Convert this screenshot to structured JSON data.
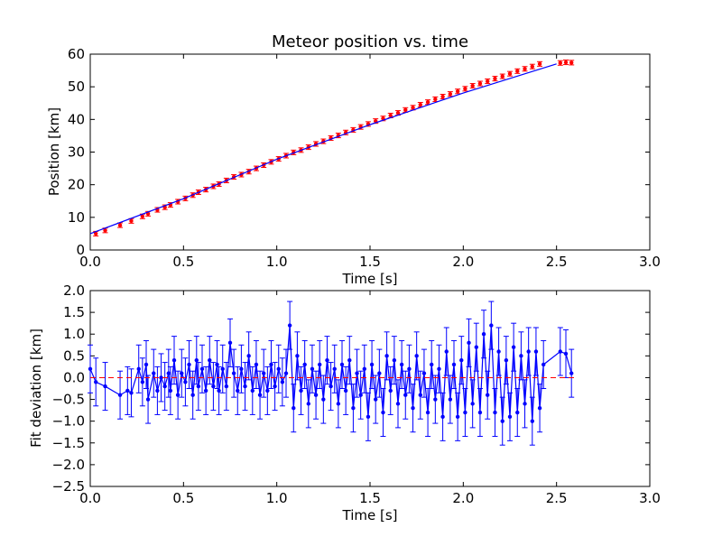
{
  "colors": {
    "fit_line": "#0000ff",
    "measured_points": "#ff0000",
    "deviation_series": "#0000ff",
    "zero_reference": "#ff0000"
  },
  "chart_data": [
    {
      "type": "scatter",
      "title": "Meteor position vs. time",
      "xlabel": "Time [s]",
      "ylabel": "Position [km]",
      "xlim": [
        0.0,
        3.0
      ],
      "ylim": [
        0,
        60
      ],
      "xticks": [
        "0.0",
        "0.5",
        "1.0",
        "1.5",
        "2.0",
        "2.5",
        "3.0"
      ],
      "yticks": [
        "0",
        "10",
        "20",
        "30",
        "40",
        "50",
        "60"
      ],
      "grid": false,
      "series": [
        {
          "kind": "points-with-error-bars",
          "marker": "red dots",
          "x": [
            0.03,
            0.08,
            0.16,
            0.22,
            0.28,
            0.31,
            0.36,
            0.4,
            0.43,
            0.47,
            0.51,
            0.55,
            0.58,
            0.62,
            0.66,
            0.69,
            0.73,
            0.77,
            0.81,
            0.85,
            0.89,
            0.93,
            0.97,
            1.01,
            1.05,
            1.09,
            1.13,
            1.17,
            1.21,
            1.25,
            1.29,
            1.33,
            1.37,
            1.41,
            1.45,
            1.49,
            1.53,
            1.57,
            1.61,
            1.65,
            1.69,
            1.73,
            1.77,
            1.81,
            1.85,
            1.89,
            1.93,
            1.97,
            2.01,
            2.05,
            2.09,
            2.13,
            2.17,
            2.21,
            2.25,
            2.29,
            2.33,
            2.37,
            2.41,
            2.52,
            2.55,
            2.58
          ],
          "y": [
            5.0,
            6.0,
            7.6,
            8.9,
            10.3,
            11.1,
            12.3,
            13.1,
            13.8,
            14.8,
            15.8,
            16.8,
            17.7,
            18.5,
            19.5,
            20.2,
            21.3,
            22.4,
            23.1,
            24.0,
            25.0,
            26.0,
            27.0,
            27.9,
            28.9,
            29.9,
            30.6,
            31.5,
            32.5,
            33.3,
            34.3,
            35.1,
            36.0,
            36.8,
            37.7,
            38.6,
            39.5,
            40.3,
            41.2,
            42.0,
            42.9,
            43.6,
            44.5,
            45.3,
            46.2,
            47.0,
            47.8,
            48.6,
            49.4,
            50.3,
            51.0,
            51.7,
            52.5,
            53.2,
            54.0,
            54.8,
            55.5,
            56.2,
            57.0,
            57.3,
            57.5,
            57.4
          ],
          "error": 0.7
        },
        {
          "kind": "fit-line",
          "x": [
            0.0,
            0.5,
            1.0,
            1.5,
            2.0,
            2.5
          ],
          "y": [
            5.0,
            15.7,
            27.8,
            38.4,
            48.1,
            57.0
          ]
        }
      ]
    },
    {
      "type": "line",
      "xlabel": "Time [s]",
      "ylabel": "Fit deviation [km]",
      "xlim": [
        0.0,
        3.0
      ],
      "ylim": [
        -2.5,
        2.0
      ],
      "xticks": [
        "0.0",
        "0.5",
        "1.0",
        "1.5",
        "2.0",
        "2.5",
        "3.0"
      ],
      "yticks": [
        "−2.5",
        "−2.0",
        "−1.5",
        "−1.0",
        "−0.5",
        "0.0",
        "0.5",
        "1.0",
        "1.5",
        "2.0"
      ],
      "grid": false,
      "series": [
        {
          "kind": "line-with-error-bars",
          "x": [
            0.0,
            0.03,
            0.08,
            0.16,
            0.2,
            0.22,
            0.26,
            0.28,
            0.3,
            0.31,
            0.34,
            0.36,
            0.38,
            0.4,
            0.42,
            0.43,
            0.45,
            0.47,
            0.49,
            0.51,
            0.53,
            0.55,
            0.57,
            0.58,
            0.6,
            0.62,
            0.64,
            0.66,
            0.68,
            0.69,
            0.71,
            0.73,
            0.75,
            0.77,
            0.79,
            0.81,
            0.83,
            0.85,
            0.87,
            0.89,
            0.91,
            0.93,
            0.95,
            0.97,
            0.99,
            1.01,
            1.03,
            1.05,
            1.07,
            1.09,
            1.11,
            1.13,
            1.15,
            1.17,
            1.19,
            1.21,
            1.23,
            1.25,
            1.27,
            1.29,
            1.31,
            1.33,
            1.35,
            1.37,
            1.39,
            1.41,
            1.43,
            1.45,
            1.47,
            1.49,
            1.51,
            1.53,
            1.55,
            1.57,
            1.59,
            1.61,
            1.63,
            1.65,
            1.67,
            1.69,
            1.71,
            1.73,
            1.75,
            1.77,
            1.79,
            1.81,
            1.83,
            1.85,
            1.87,
            1.89,
            1.91,
            1.93,
            1.95,
            1.97,
            1.99,
            2.01,
            2.03,
            2.05,
            2.07,
            2.09,
            2.11,
            2.13,
            2.15,
            2.17,
            2.19,
            2.21,
            2.23,
            2.25,
            2.27,
            2.29,
            2.31,
            2.33,
            2.35,
            2.37,
            2.39,
            2.41,
            2.43,
            2.52,
            2.55,
            2.58
          ],
          "y": [
            0.2,
            -0.1,
            -0.2,
            -0.4,
            -0.3,
            -0.35,
            0.2,
            -0.1,
            0.3,
            -0.5,
            0.1,
            -0.3,
            0.0,
            -0.2,
            0.1,
            -0.3,
            0.4,
            -0.4,
            0.1,
            -0.1,
            0.3,
            -0.4,
            0.4,
            -0.2,
            0.2,
            -0.3,
            0.4,
            -0.2,
            0.3,
            -0.3,
            0.2,
            -0.2,
            0.8,
            0.1,
            -0.3,
            0.2,
            -0.2,
            0.5,
            -0.3,
            0.3,
            -0.4,
            0.1,
            -0.3,
            0.3,
            -0.2,
            0.2,
            -0.1,
            0.1,
            1.2,
            -0.7,
            0.5,
            -0.3,
            0.3,
            -0.6,
            0.2,
            -0.4,
            0.3,
            -0.5,
            0.4,
            -0.2,
            0.2,
            -0.6,
            0.3,
            -0.3,
            0.4,
            -0.7,
            0.1,
            -0.4,
            0.2,
            -0.9,
            0.3,
            -0.5,
            0.1,
            -0.8,
            0.5,
            -0.3,
            0.4,
            -0.6,
            0.3,
            -0.4,
            0.2,
            -0.7,
            0.5,
            -0.4,
            0.1,
            -0.8,
            0.3,
            -0.5,
            0.2,
            -0.9,
            0.6,
            -0.5,
            0.3,
            -0.9,
            0.4,
            -0.8,
            0.8,
            -0.6,
            0.7,
            -0.8,
            1.0,
            -0.4,
            1.2,
            -0.8,
            0.6,
            -1.0,
            0.4,
            -0.9,
            0.7,
            -0.8,
            0.5,
            -0.6,
            0.6,
            -1.0,
            0.6,
            -0.7,
            0.3,
            0.6,
            0.55,
            0.1
          ],
          "error": 0.55
        },
        {
          "kind": "zero-reference-dashed",
          "x": [
            0.0,
            2.6
          ],
          "y": [
            0.0,
            0.0
          ]
        }
      ]
    }
  ]
}
